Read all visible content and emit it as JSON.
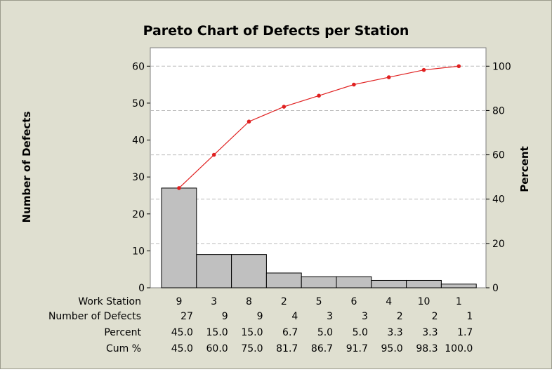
{
  "chart_data": {
    "type": "bar",
    "title": "Pareto Chart of Defects per Station",
    "ylabel": "Number of Defects",
    "y2label": "Percent",
    "ylim": [
      0,
      65
    ],
    "y2lim": [
      0,
      108.33
    ],
    "yticks": [
      0,
      10,
      20,
      30,
      40,
      50,
      60
    ],
    "y2ticks": [
      0,
      20,
      40,
      60,
      80,
      100
    ],
    "grid": "dashed horizontal at right-axis ticks",
    "categories": [
      "9",
      "3",
      "8",
      "2",
      "5",
      "6",
      "4",
      "10",
      "1"
    ],
    "values": [
      27,
      9,
      9,
      4,
      3,
      3,
      2,
      2,
      1
    ],
    "cumulative_percent": [
      45.0,
      60.0,
      75.0,
      81.7,
      86.7,
      91.7,
      95.0,
      98.3,
      100.0
    ],
    "table": {
      "row_labels": [
        "Work Station",
        "Number of Defects",
        "Percent",
        "Cum %"
      ],
      "work_station": [
        "9",
        "3",
        "8",
        "2",
        "5",
        "6",
        "4",
        "10",
        "1"
      ],
      "number_of_defects": [
        "27",
        "9",
        "9",
        "4",
        "3",
        "3",
        "2",
        "2",
        "1"
      ],
      "percent": [
        "45.0",
        "15.0",
        "15.0",
        "6.7",
        "5.0",
        "5.0",
        "3.3",
        "3.3",
        "1.7"
      ],
      "cum_percent": [
        "45.0",
        "60.0",
        "75.0",
        "81.7",
        "86.7",
        "91.7",
        "95.0",
        "98.3",
        "100.0"
      ]
    },
    "colors": {
      "frame": "#dfdfd0",
      "plot_area": "#ffffff",
      "bar_fill": "#c0c0c0",
      "bar_stroke": "#000000",
      "line": "#e02020",
      "grid": "#bcbcbc"
    }
  }
}
